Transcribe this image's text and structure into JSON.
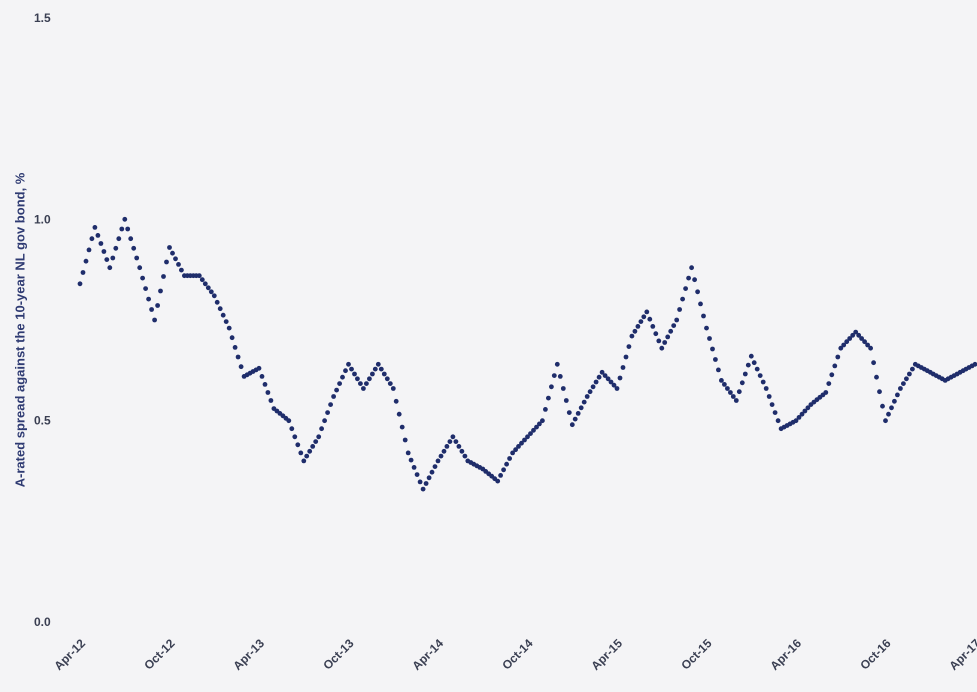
{
  "chart_data": {
    "type": "scatter",
    "ylabel": "A-rated spread against the 10-year NL gov bond, %",
    "xlabel": "",
    "ylim": [
      0.0,
      1.5
    ],
    "ytick_labels": [
      "0.0",
      "0.5",
      "1.0",
      "1.5"
    ],
    "yticks": [
      0.0,
      0.5,
      1.0,
      1.5
    ],
    "xtick_labels": [
      "Apr-12",
      "Oct-12",
      "Apr-13",
      "Oct-13",
      "Apr-14",
      "Oct-14",
      "Apr-15",
      "Oct-15",
      "Apr-16",
      "Oct-16",
      "Apr-17"
    ],
    "xlim": [
      "2012-04",
      "2017-04"
    ],
    "grid": false,
    "series": [
      {
        "color": "#1f2d6b",
        "x": [
          "2012-04",
          "2012-05",
          "2012-06",
          "2012-07",
          "2012-08",
          "2012-09",
          "2012-10",
          "2012-11",
          "2012-12",
          "2013-01",
          "2013-02",
          "2013-03",
          "2013-04",
          "2013-05",
          "2013-06",
          "2013-07",
          "2013-08",
          "2013-09",
          "2013-10",
          "2013-11",
          "2013-12",
          "2014-01",
          "2014-02",
          "2014-03",
          "2014-04",
          "2014-05",
          "2014-06",
          "2014-07",
          "2014-08",
          "2014-09",
          "2014-10",
          "2014-11",
          "2014-12",
          "2015-01",
          "2015-02",
          "2015-03",
          "2015-04",
          "2015-05",
          "2015-06",
          "2015-07",
          "2015-08",
          "2015-09",
          "2015-10",
          "2015-11",
          "2015-12",
          "2016-01",
          "2016-02",
          "2016-03",
          "2016-04",
          "2016-05",
          "2016-06",
          "2016-07",
          "2016-08",
          "2016-09",
          "2016-10",
          "2016-11",
          "2016-12",
          "2017-01",
          "2017-02",
          "2017-03",
          "2017-04"
        ],
        "values": [
          0.84,
          0.98,
          0.88,
          1.0,
          0.88,
          0.75,
          0.93,
          0.86,
          0.86,
          0.81,
          0.73,
          0.61,
          0.63,
          0.53,
          0.5,
          0.4,
          0.46,
          0.56,
          0.64,
          0.58,
          0.64,
          0.58,
          0.42,
          0.33,
          0.4,
          0.46,
          0.4,
          0.38,
          0.35,
          0.42,
          0.46,
          0.5,
          0.64,
          0.49,
          0.56,
          0.62,
          0.58,
          0.71,
          0.77,
          0.68,
          0.75,
          0.88,
          0.73,
          0.6,
          0.55,
          0.66,
          0.58,
          0.48,
          0.5,
          0.54,
          0.57,
          0.68,
          0.72,
          0.68,
          0.5,
          0.58,
          0.64,
          0.62,
          0.6,
          0.62,
          0.64
        ]
      }
    ]
  }
}
